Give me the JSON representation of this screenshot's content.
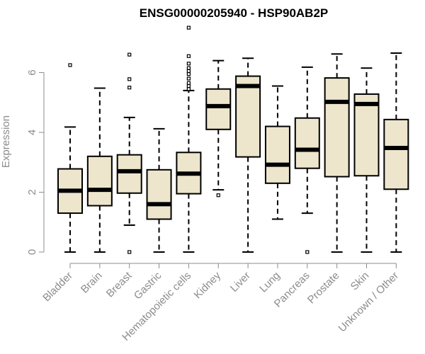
{
  "chart_data": {
    "type": "boxplot",
    "title": "ENSG00000205940 - HSP90AB2P",
    "xlabel": "",
    "ylabel": "Expression",
    "ylim": [
      0,
      7.6
    ],
    "yticks": [
      0,
      2,
      4,
      6
    ],
    "grid": false,
    "box_fill": "#ede6cc",
    "categories": [
      "Bladder",
      "Brain",
      "Breast",
      "Gastric",
      "Hematopoietic cells",
      "Kidney",
      "Liver",
      "Lung",
      "Pancreas",
      "Prostate",
      "Skin",
      "Unknown / Other"
    ],
    "series": [
      {
        "name": "Bladder",
        "min": 0,
        "q1": 1.3,
        "median": 2.05,
        "q3": 2.78,
        "max": 4.18,
        "outliers": [
          6.25
        ]
      },
      {
        "name": "Brain",
        "min": 0,
        "q1": 1.55,
        "median": 2.08,
        "q3": 3.2,
        "max": 5.48,
        "outliers": []
      },
      {
        "name": "Breast",
        "min": 0.9,
        "q1": 1.97,
        "median": 2.7,
        "q3": 3.25,
        "max": 4.5,
        "outliers": [
          0,
          5.5,
          5.78,
          6.6
        ]
      },
      {
        "name": "Gastric",
        "min": 0,
        "q1": 1.1,
        "median": 1.6,
        "q3": 2.75,
        "max": 4.12,
        "outliers": []
      },
      {
        "name": "Hematopoietic cells",
        "min": 0,
        "q1": 1.95,
        "median": 2.62,
        "q3": 3.33,
        "max": 5.4,
        "outliers": [
          5.45,
          5.55,
          5.65,
          5.8,
          5.95,
          6.05,
          6.15,
          6.3,
          6.55,
          7.5
        ]
      },
      {
        "name": "Kidney",
        "min": 2.08,
        "q1": 4.1,
        "median": 4.88,
        "q3": 5.45,
        "max": 6.4,
        "outliers": [
          1.9
        ]
      },
      {
        "name": "Liver",
        "min": 0,
        "q1": 3.18,
        "median": 5.55,
        "q3": 5.88,
        "max": 6.48,
        "outliers": []
      },
      {
        "name": "Lung",
        "min": 1.1,
        "q1": 2.3,
        "median": 2.92,
        "q3": 4.2,
        "max": 5.55,
        "outliers": []
      },
      {
        "name": "Pancreas",
        "min": 1.3,
        "q1": 2.8,
        "median": 3.42,
        "q3": 4.48,
        "max": 6.18,
        "outliers": [
          0
        ]
      },
      {
        "name": "Prostate",
        "min": 0,
        "q1": 2.52,
        "median": 5.02,
        "q3": 5.82,
        "max": 6.62,
        "outliers": []
      },
      {
        "name": "Skin",
        "min": 0,
        "q1": 2.55,
        "median": 4.95,
        "q3": 5.28,
        "max": 6.15,
        "outliers": []
      },
      {
        "name": "Unknown / Other",
        "min": 0,
        "q1": 2.1,
        "median": 3.48,
        "q3": 4.43,
        "max": 6.65,
        "outliers": []
      }
    ]
  }
}
